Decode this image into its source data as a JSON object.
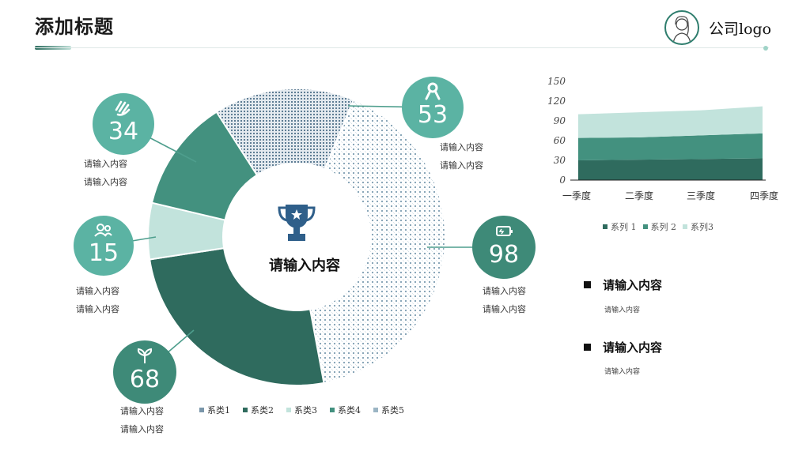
{
  "header": {
    "title": "添加标题",
    "logo_text": "公司logo",
    "accent_color": "#2e6e60"
  },
  "center_label": "请输入内容",
  "center_icon": "trophy-icon",
  "bubbles": [
    {
      "value": "34",
      "icon": "hand-wave-icon",
      "color": "#5bb3a3",
      "notes": [
        "请输入内容",
        "请输入内容"
      ]
    },
    {
      "value": "15",
      "icon": "users-icon",
      "color": "#5bb3a3",
      "notes": [
        "请输入内容",
        "请输入内容"
      ]
    },
    {
      "value": "68",
      "icon": "sprout-icon",
      "color": "#3e8a78",
      "notes": [
        "请输入内容",
        "请输入内容"
      ]
    },
    {
      "value": "53",
      "icon": "ribbon-icon",
      "color": "#5bb3a3",
      "notes": [
        "请输入内容",
        "请输入内容"
      ]
    },
    {
      "value": "98",
      "icon": "battery-icon",
      "color": "#3e8a78",
      "notes": [
        "请输入内容",
        "请输入内容"
      ]
    }
  ],
  "right_items": [
    {
      "heading": "请输入内容",
      "sub": "请输入内容"
    },
    {
      "heading": "请输入内容",
      "sub": "请输入内容"
    }
  ],
  "chart_data": [
    {
      "type": "pie",
      "style": "donut",
      "title": "",
      "categories": [
        "系类1",
        "系类2",
        "系类3",
        "系类4",
        "系类5"
      ],
      "values": [
        15,
        25,
        6,
        12,
        40
      ],
      "colors": [
        "#7a96aa",
        "#2f6b5e",
        "#c2e3dc",
        "#43917f",
        "#9bb5c4"
      ],
      "legend": "bottom"
    },
    {
      "type": "area",
      "stacked": true,
      "title": "",
      "categories": [
        "一季度",
        "二季度",
        "三季度",
        "四季度"
      ],
      "series": [
        {
          "name": "系列 1",
          "values": [
            30,
            31,
            32,
            33
          ],
          "color": "#2f6b5e"
        },
        {
          "name": "系列 2",
          "values": [
            34,
            34,
            36,
            38
          ],
          "color": "#43917f"
        },
        {
          "name": "系列3",
          "values": [
            36,
            38,
            38,
            41
          ],
          "color": "#c2e3dc"
        }
      ],
      "yticks": [
        0,
        30,
        60,
        90,
        120,
        150
      ],
      "ylim": [
        0,
        150
      ],
      "grid": false,
      "legend": "bottom"
    }
  ]
}
